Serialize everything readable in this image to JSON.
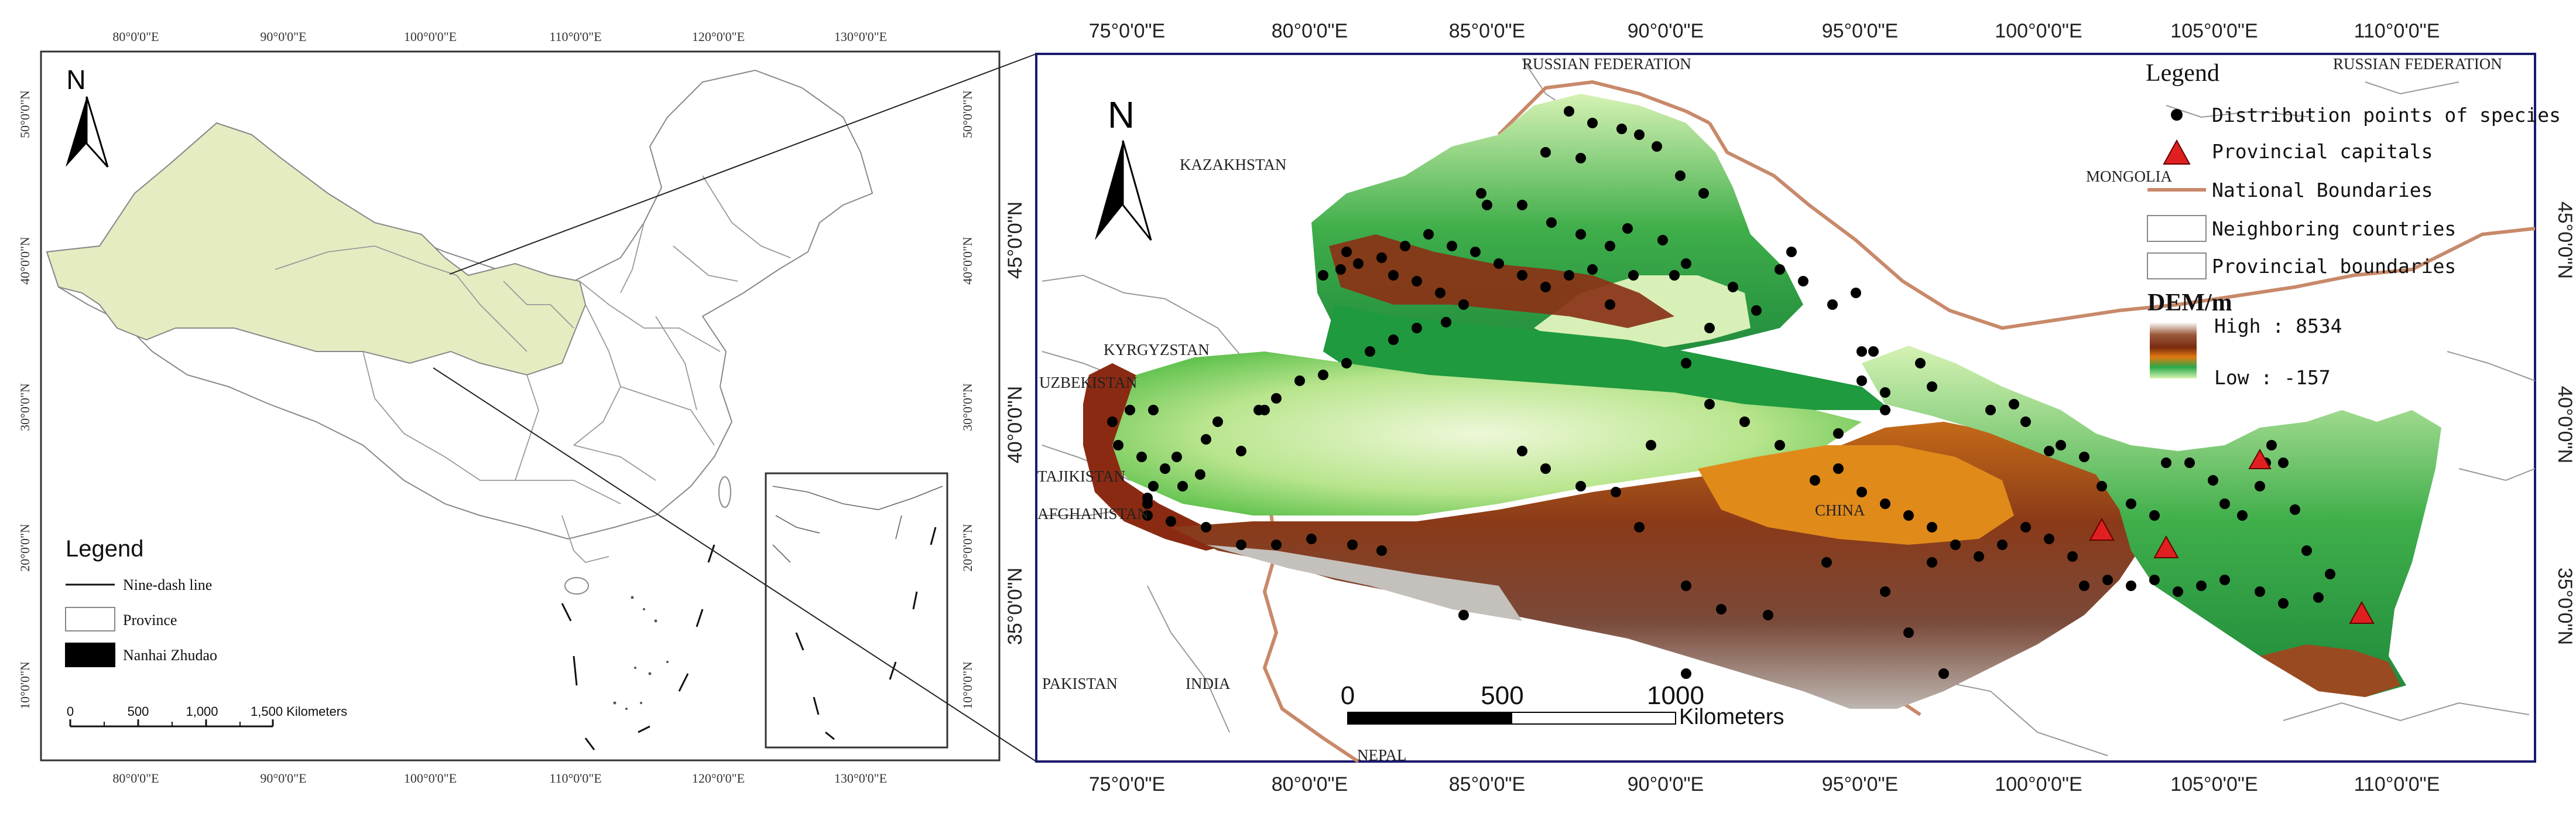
{
  "left_map": {
    "north_label": "N",
    "top_coords": [
      "80°0'0\"E",
      "90°0'0\"E",
      "100°0'0\"E",
      "110°0'0\"E",
      "120°0'0\"E",
      "130°0'0\"E"
    ],
    "bottom_coords": [
      "80°0'0\"E",
      "90°0'0\"E",
      "100°0'0\"E",
      "110°0'0\"E",
      "120°0'0\"E",
      "130°0'0\"E"
    ],
    "left_coords": [
      "50°0'0\"N",
      "40°0'0\"N",
      "30°0'0\"N",
      "20°0'0\"N",
      "10°0'0\"N"
    ],
    "right_coords": [
      "50°0'0\"N",
      "40°0'0\"N",
      "30°0'0\"N",
      "20°0'0\"N",
      "10°0'0\"N"
    ],
    "legend": {
      "title": "Legend",
      "items": [
        "Nine-dash line",
        "Province",
        "Nanhai Zhudao"
      ]
    },
    "scale": {
      "ticks": [
        "0",
        "500",
        "1,000",
        "1,500 Kilometers"
      ]
    },
    "colors": {
      "highlight": "#e6ecc2",
      "border": "#999999"
    }
  },
  "right_map": {
    "north_label": "N",
    "top_coords": [
      "75°0'0\"E",
      "80°0'0\"E",
      "85°0'0\"E",
      "90°0'0\"E",
      "95°0'0\"E",
      "100°0'0\"E",
      "105°0'0\"E",
      "110°0'0\"E"
    ],
    "bottom_coords": [
      "75°0'0\"E",
      "80°0'0\"E",
      "85°0'0\"E",
      "90°0'0\"E",
      "95°0'0\"E",
      "100°0'0\"E",
      "105°0'0\"E",
      "110°0'0\"E"
    ],
    "left_coords": [
      "45°0'0\"N",
      "40°0'0\"N",
      "35°0'0\"N"
    ],
    "right_coords": [
      "45°0'0\"N",
      "40°0'0\"N",
      "35°0'0\"N"
    ],
    "countries": [
      "RUSSIAN FEDERATION",
      "RUSSIAN FEDERATION",
      "KAZAKHSTAN",
      "MONGOLIA",
      "KYRGYZSTAN",
      "UZBEKISTAN",
      "TAJIKISTAN",
      "AFGHANISTAN",
      "CHINA",
      "PAKISTAN",
      "INDIA",
      "NEPAL"
    ],
    "legend": {
      "title": "Legend",
      "items": [
        "Distribution points of species",
        "Provincial capitals",
        "National Boundaries",
        "Neighboring countries",
        "Provincial boundaries"
      ],
      "dem_title": "DEM/m",
      "dem_high": "High : 8534",
      "dem_low": "Low : -157"
    },
    "scale": {
      "ticks": [
        "0",
        "500",
        "1000"
      ],
      "unit": "Kilometers"
    },
    "colors": {
      "frame": "#1a1a6e",
      "boundary": "#c8896a",
      "point": "#000000",
      "capital": "#e02020"
    }
  }
}
